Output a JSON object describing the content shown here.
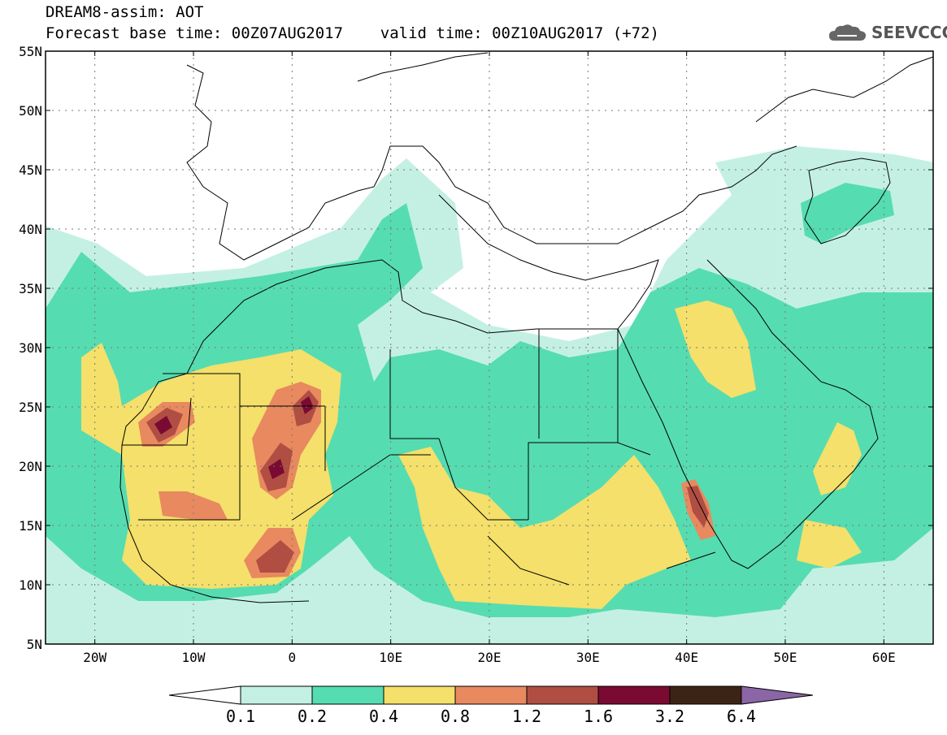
{
  "header": {
    "line1": "DREAM8-assim: AOT",
    "line2": "Forecast base time: 00Z07AUG2017    valid time: 00Z10AUG2017 (+72)"
  },
  "logo": {
    "text": "SEEVCCC",
    "icon": "cloud-icon"
  },
  "map": {
    "lat_labels": [
      "55N",
      "50N",
      "45N",
      "40N",
      "35N",
      "30N",
      "25N",
      "20N",
      "15N",
      "10N",
      "5N"
    ],
    "lon_labels": [
      "20W",
      "10W",
      "0",
      "10E",
      "20E",
      "30E",
      "40E",
      "50E",
      "60E"
    ],
    "lon_range": [
      -25,
      65
    ],
    "lat_range": [
      5,
      55
    ],
    "grid": true
  },
  "legend": {
    "labels": [
      "0.1",
      "0.2",
      "0.4",
      "0.8",
      "1.2",
      "1.6",
      "3.2",
      "6.4"
    ],
    "colors": [
      "#ffffff",
      "#c4f0e4",
      "#56dcb1",
      "#f4e06a",
      "#e8895f",
      "#b04e43",
      "#7a0a32",
      "#3c2414",
      "#8a66a6"
    ]
  }
}
